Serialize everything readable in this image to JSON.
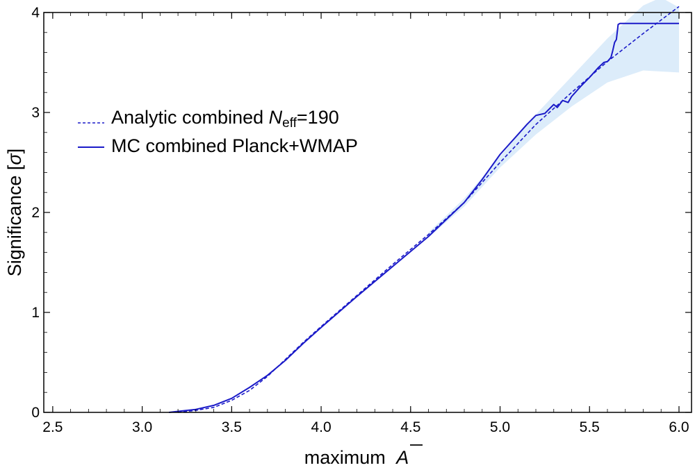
{
  "chart_data": {
    "type": "line",
    "xlabel": "maximum",
    "xlabel_symbol": "A",
    "ylabel": "Significance [",
    "ylabel_symbol": "σ",
    "ylabel_close": "]",
    "xlim": [
      2.45,
      6.07
    ],
    "ylim": [
      0,
      4
    ],
    "x_ticks": [
      2.5,
      3.0,
      3.5,
      4.0,
      4.5,
      5.0,
      5.5,
      6.0
    ],
    "x_tick_labels": [
      "2.5",
      "3.0",
      "3.5",
      "4.0",
      "4.5",
      "5.0",
      "5.5",
      "6.0"
    ],
    "y_ticks": [
      0,
      1,
      2,
      3,
      4
    ],
    "y_tick_labels": [
      "0",
      "1",
      "2",
      "3",
      "4"
    ],
    "grid": false,
    "legend_position": "upper-left",
    "colors": {
      "line": "#1a1ac8",
      "band": "#dcecfa",
      "axis": "#000000"
    },
    "series": [
      {
        "name": "Analytic combined",
        "label_prefix": "Analytic combined ",
        "label_var": "N",
        "label_sub": "eff",
        "label_suffix": "=190",
        "style": "dashed",
        "x": [
          3.2,
          3.3,
          3.4,
          3.5,
          3.6,
          3.7,
          3.8,
          3.9,
          4.0,
          4.2,
          4.4,
          4.6,
          4.8,
          5.0,
          5.2,
          5.4,
          5.6,
          5.8,
          6.0
        ],
        "y": [
          0.0,
          0.02,
          0.05,
          0.12,
          0.22,
          0.36,
          0.53,
          0.7,
          0.86,
          1.17,
          1.48,
          1.78,
          2.1,
          2.5,
          2.88,
          3.2,
          3.51,
          3.79,
          4.06
        ]
      },
      {
        "name": "MC combined Planck+WMAP",
        "label": "MC combined Planck+WMAP",
        "style": "solid",
        "x": [
          3.15,
          3.3,
          3.4,
          3.5,
          3.6,
          3.7,
          3.8,
          3.9,
          4.0,
          4.2,
          4.4,
          4.6,
          4.8,
          4.9,
          5.0,
          5.1,
          5.15,
          5.2,
          5.25,
          5.3,
          5.32,
          5.35,
          5.38,
          5.4,
          5.45,
          5.5,
          5.55,
          5.58,
          5.6,
          5.62,
          5.63,
          5.64,
          5.65,
          5.66,
          5.67,
          6.0
        ],
        "y": [
          0.0,
          0.03,
          0.07,
          0.14,
          0.25,
          0.37,
          0.52,
          0.69,
          0.85,
          1.16,
          1.46,
          1.76,
          2.1,
          2.33,
          2.58,
          2.78,
          2.88,
          2.97,
          2.99,
          3.08,
          3.05,
          3.12,
          3.1,
          3.16,
          3.26,
          3.35,
          3.45,
          3.5,
          3.51,
          3.55,
          3.62,
          3.7,
          3.73,
          3.88,
          3.89,
          3.89
        ]
      }
    ],
    "band": {
      "name": "uncertainty band",
      "x": [
        4.6,
        4.8,
        5.0,
        5.2,
        5.4,
        5.6,
        5.8,
        5.9,
        6.0
      ],
      "upper": [
        1.8,
        2.14,
        2.56,
        2.98,
        3.36,
        3.74,
        4.07,
        4.15,
        4.05
      ],
      "lower": [
        1.75,
        2.06,
        2.45,
        2.78,
        3.06,
        3.3,
        3.42,
        3.41,
        3.4
      ]
    }
  }
}
